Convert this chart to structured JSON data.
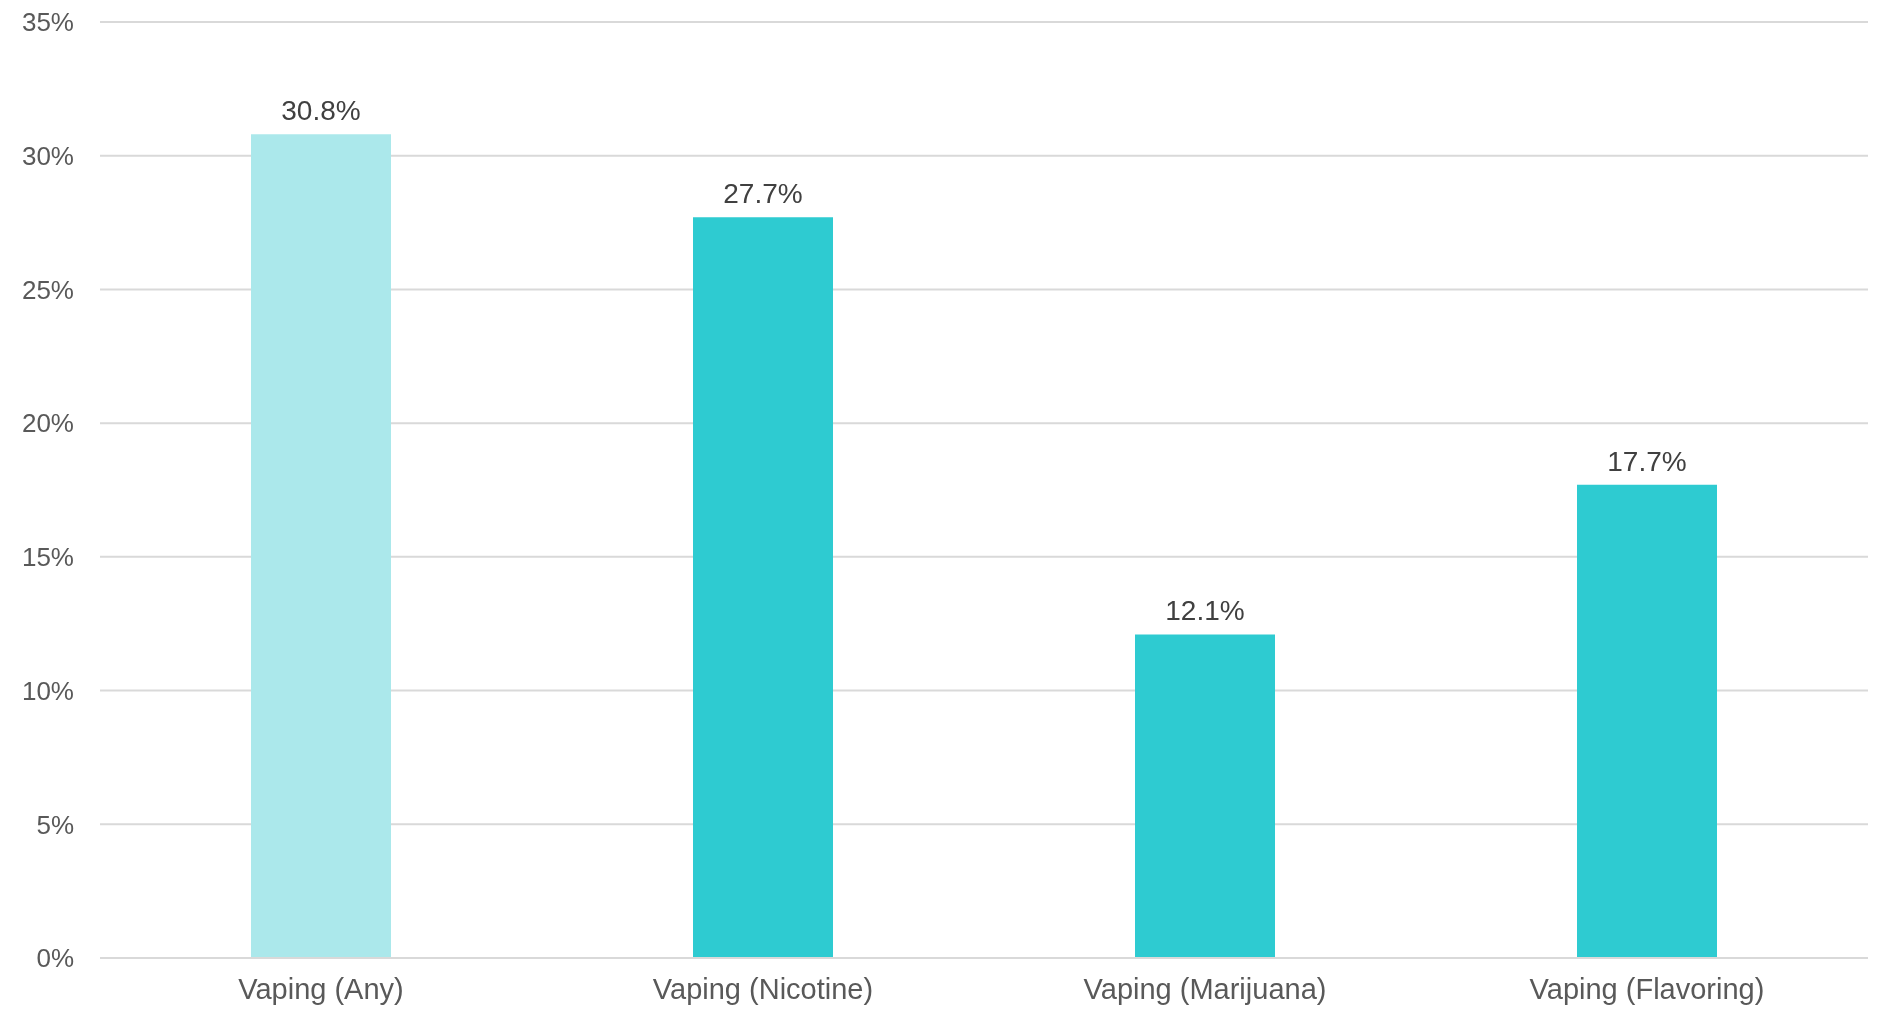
{
  "chart_data": {
    "type": "bar",
    "categories": [
      "Vaping (Any)",
      "Vaping (Nicotine)",
      "Vaping (Marijuana)",
      "Vaping (Flavoring)"
    ],
    "values": [
      30.8,
      27.7,
      12.1,
      17.7
    ],
    "colors": [
      "#abe8eb",
      "#2ecbd1",
      "#2ecbd1",
      "#2ecbd1"
    ],
    "value_labels": [
      "30.8%",
      "27.7%",
      "12.1%",
      "17.7%"
    ],
    "ylim": [
      0,
      35
    ],
    "yticks": [
      {
        "value": 0,
        "label": "0%"
      },
      {
        "value": 5,
        "label": "5%"
      },
      {
        "value": 10,
        "label": "10%"
      },
      {
        "value": 15,
        "label": "15%"
      },
      {
        "value": 20,
        "label": "20%"
      },
      {
        "value": 25,
        "label": "25%"
      },
      {
        "value": 30,
        "label": "30%"
      },
      {
        "value": 35,
        "label": "35%"
      }
    ],
    "grid": "y"
  }
}
